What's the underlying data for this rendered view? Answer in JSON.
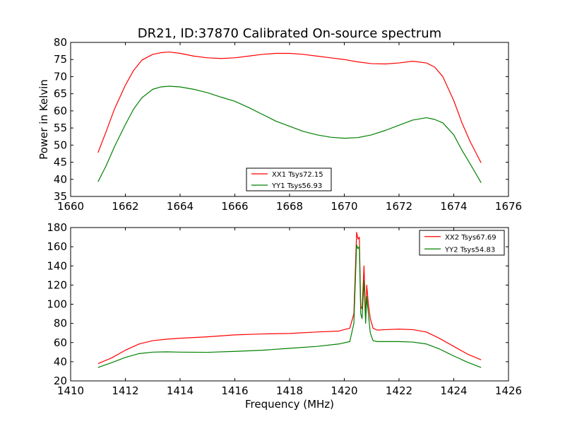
{
  "figure": {
    "title": "DR21, ID:37870 Calibrated On-source spectrum"
  },
  "chart_data": [
    {
      "type": "line",
      "title": "DR21, ID:37870 Calibrated On-source spectrum",
      "xlabel": "",
      "ylabel": "Power in Kelvin",
      "xlim": [
        1660,
        1676
      ],
      "ylim": [
        35,
        80
      ],
      "xticks": [
        1660,
        1662,
        1664,
        1666,
        1668,
        1670,
        1672,
        1674,
        1676
      ],
      "yticks": [
        35,
        40,
        45,
        50,
        55,
        60,
        65,
        70,
        75,
        80
      ],
      "grid": false,
      "legend_position": "bottom-center",
      "series": [
        {
          "name": "XX1 Tsys72.15",
          "color": "#ff0000",
          "x": [
            1661.0,
            1661.3,
            1661.6,
            1662.0,
            1662.3,
            1662.6,
            1663.0,
            1663.3,
            1663.6,
            1664.0,
            1664.5,
            1665.0,
            1665.5,
            1666.0,
            1666.5,
            1667.0,
            1667.5,
            1668.0,
            1668.5,
            1669.0,
            1669.5,
            1670.0,
            1670.5,
            1671.0,
            1671.5,
            1672.0,
            1672.5,
            1673.0,
            1673.3,
            1673.6,
            1674.0,
            1674.3,
            1674.6,
            1675.0
          ],
          "values": [
            47.8,
            54.0,
            60.5,
            67.5,
            71.8,
            74.8,
            76.5,
            77.0,
            77.2,
            76.8,
            76.0,
            75.5,
            75.3,
            75.5,
            76.0,
            76.5,
            76.8,
            76.8,
            76.5,
            76.0,
            75.5,
            75.0,
            74.3,
            73.8,
            73.7,
            74.0,
            74.5,
            74.0,
            72.8,
            70.0,
            63.0,
            56.5,
            51.0,
            44.8
          ]
        },
        {
          "name": "YY1 Tsys56.93",
          "color": "#008000",
          "x": [
            1661.0,
            1661.3,
            1661.6,
            1662.0,
            1662.3,
            1662.6,
            1663.0,
            1663.3,
            1663.6,
            1664.0,
            1664.5,
            1665.0,
            1665.5,
            1666.0,
            1666.5,
            1667.0,
            1667.5,
            1668.0,
            1668.5,
            1669.0,
            1669.5,
            1670.0,
            1670.5,
            1671.0,
            1671.5,
            1672.0,
            1672.5,
            1673.0,
            1673.3,
            1673.6,
            1674.0,
            1674.3,
            1674.6,
            1675.0
          ],
          "values": [
            39.3,
            44.0,
            49.5,
            56.0,
            60.5,
            63.8,
            66.3,
            67.0,
            67.2,
            67.0,
            66.3,
            65.3,
            64.0,
            62.8,
            61.0,
            59.0,
            57.0,
            55.5,
            54.0,
            53.0,
            52.3,
            52.0,
            52.2,
            53.0,
            54.3,
            55.8,
            57.3,
            58.0,
            57.5,
            56.5,
            53.0,
            48.5,
            44.5,
            39.0
          ]
        }
      ]
    },
    {
      "type": "line",
      "title": "",
      "xlabel": "Frequency (MHz)",
      "ylabel": "",
      "xlim": [
        1410,
        1426
      ],
      "ylim": [
        20,
        180
      ],
      "xticks": [
        1410,
        1412,
        1414,
        1416,
        1418,
        1420,
        1422,
        1424,
        1426
      ],
      "yticks": [
        20,
        40,
        60,
        80,
        100,
        120,
        140,
        160,
        180
      ],
      "grid": false,
      "legend_position": "top-right",
      "series": [
        {
          "name": "XX2 Tsys67.69",
          "color": "#ff0000",
          "x": [
            1411.0,
            1411.5,
            1412.0,
            1412.5,
            1413.0,
            1413.5,
            1414.0,
            1415.0,
            1416.0,
            1417.0,
            1418.0,
            1419.0,
            1419.8,
            1420.2,
            1420.35,
            1420.45,
            1420.5,
            1420.55,
            1420.6,
            1420.65,
            1420.72,
            1420.78,
            1420.82,
            1420.88,
            1420.95,
            1421.05,
            1421.2,
            1421.5,
            1422.0,
            1422.5,
            1423.0,
            1423.5,
            1424.0,
            1424.5,
            1425.0
          ],
          "values": [
            38.0,
            44.0,
            52.0,
            58.5,
            62.0,
            63.5,
            64.5,
            66.0,
            68.0,
            69.0,
            69.5,
            71.0,
            72.0,
            75.0,
            90.0,
            175.0,
            168.0,
            170.0,
            98.0,
            95.0,
            140.0,
            85.0,
            120.0,
            100.0,
            85.0,
            75.0,
            73.0,
            73.5,
            74.0,
            73.5,
            71.0,
            64.0,
            56.0,
            48.0,
            42.0
          ]
        },
        {
          "name": "YY2 Tsys54.83",
          "color": "#008000",
          "x": [
            1411.0,
            1411.5,
            1412.0,
            1412.5,
            1413.0,
            1413.5,
            1414.0,
            1415.0,
            1416.0,
            1417.0,
            1418.0,
            1419.0,
            1419.8,
            1420.2,
            1420.35,
            1420.45,
            1420.5,
            1420.55,
            1420.6,
            1420.65,
            1420.72,
            1420.78,
            1420.82,
            1420.88,
            1420.95,
            1421.05,
            1421.2,
            1421.5,
            1422.0,
            1422.5,
            1423.0,
            1423.5,
            1424.0,
            1424.5,
            1425.0
          ],
          "values": [
            34.0,
            39.0,
            44.5,
            48.5,
            50.0,
            50.3,
            50.0,
            49.8,
            50.8,
            52.0,
            54.0,
            56.0,
            58.5,
            61.0,
            80.0,
            162.0,
            158.0,
            160.0,
            90.0,
            85.0,
            125.0,
            80.0,
            108.0,
            90.0,
            70.0,
            62.0,
            61.0,
            61.0,
            61.0,
            60.5,
            58.5,
            53.0,
            46.0,
            39.5,
            34.0
          ]
        }
      ]
    }
  ]
}
